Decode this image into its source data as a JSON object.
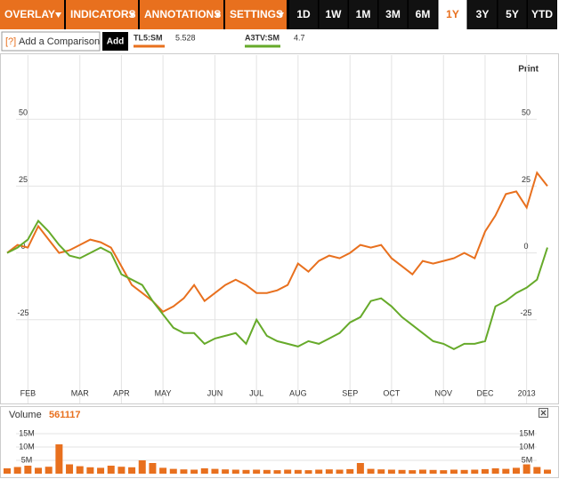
{
  "toolbar": {
    "menus": [
      "OVERLAY",
      "INDICATORS",
      "ANNOTATIONS",
      "SETTINGS"
    ],
    "periods": [
      "1D",
      "1W",
      "1M",
      "3M",
      "6M",
      "1Y",
      "3Y",
      "5Y",
      "YTD"
    ],
    "selected_period": "1Y"
  },
  "comparison": {
    "help": "[?]",
    "placeholder": "Add a Comparison",
    "button": "Add"
  },
  "print": "Print",
  "chart_data": [
    {
      "type": "line",
      "categories": [
        null,
        null,
        "FEB",
        null,
        null,
        null,
        null,
        "MAR",
        null,
        null,
        null,
        "APR",
        null,
        null,
        null,
        "MAY",
        null,
        null,
        null,
        null,
        "JUN",
        null,
        null,
        null,
        "JUL",
        null,
        null,
        null,
        "AUG",
        null,
        null,
        null,
        null,
        "SEP",
        null,
        null,
        null,
        "OCT",
        null,
        null,
        null,
        null,
        "NOV",
        null,
        null,
        null,
        "DEC",
        null,
        null,
        null,
        "2013",
        null,
        null
      ],
      "series": [
        {
          "name": "TL5:SM",
          "last": 5.528,
          "color": "#e8701e",
          "values": [
            0,
            3,
            2,
            10,
            5,
            0,
            1,
            3,
            5,
            4,
            2,
            -5,
            -12,
            -15,
            -18,
            -22,
            -20,
            -17,
            -12,
            -18,
            -15,
            -12,
            -10,
            -12,
            -15,
            -15,
            -14,
            -12,
            -4,
            -7,
            -3,
            -1,
            -2,
            0,
            3,
            2,
            3,
            -2,
            -5,
            -8,
            -3,
            -4,
            -3,
            -2,
            0,
            -2,
            8,
            14,
            22,
            23,
            17,
            30,
            25
          ]
        },
        {
          "name": "A3TV:SM",
          "last": 4.7,
          "color": "#66aa2a",
          "values": [
            0,
            2,
            5,
            12,
            8,
            3,
            -1,
            -2,
            0,
            2,
            0,
            -8,
            -10,
            -12,
            -18,
            -23,
            -28,
            -30,
            -30,
            -34,
            -32,
            -31,
            -30,
            -34,
            -25,
            -31,
            -33,
            -34,
            -35,
            -33,
            -34,
            -32,
            -30,
            -26,
            -24,
            -18,
            -17,
            -20,
            -24,
            -27,
            -30,
            -33,
            -34,
            -36,
            -34,
            -34,
            -33,
            -20,
            -18,
            -15,
            -13,
            -10,
            2
          ]
        }
      ],
      "ylim": [
        -49,
        74
      ],
      "yticks": [
        -25,
        0,
        25,
        50
      ],
      "grid": true
    },
    {
      "type": "bar",
      "title": "Volume",
      "last": 561117,
      "color": "#e8701e",
      "values": [
        2000000,
        2500000,
        3000000,
        2200000,
        2600000,
        11000000,
        3500000,
        2800000,
        2400000,
        2200000,
        3000000,
        2600000,
        2400000,
        5000000,
        4000000,
        2200000,
        1800000,
        1600000,
        1500000,
        2000000,
        1800000,
        1600000,
        1500000,
        1400000,
        1500000,
        1400000,
        1300000,
        1500000,
        1400000,
        1300000,
        1500000,
        1600000,
        1500000,
        1700000,
        4000000,
        1800000,
        1600000,
        1500000,
        1400000,
        1300000,
        1500000,
        1400000,
        1300000,
        1500000,
        1400000,
        1500000,
        1700000,
        2000000,
        1800000,
        2200000,
        3500000,
        2500000,
        1500000
      ],
      "ylim": [
        0,
        18000000
      ],
      "yticks": [
        {
          "value": 5000000,
          "label": "5M"
        },
        {
          "value": 10000000,
          "label": "10M"
        },
        {
          "value": 15000000,
          "label": "15M"
        }
      ]
    }
  ]
}
